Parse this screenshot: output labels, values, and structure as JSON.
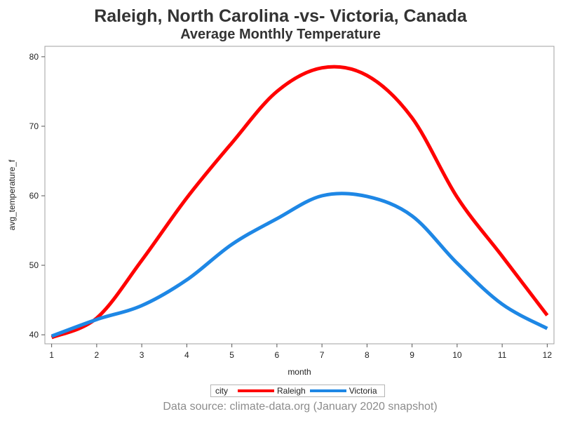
{
  "title": "Raleigh, North Carolina -vs- Victoria, Canada",
  "subtitle": "Average Monthly Temperature",
  "source_note": "Data source: climate-data.org (January 2020 snapshot)",
  "chart_data": {
    "type": "line",
    "xlabel": "month",
    "ylabel": "avg_temperature_f",
    "x": [
      1,
      2,
      3,
      4,
      5,
      6,
      7,
      8,
      9,
      10,
      11,
      12
    ],
    "xlim": [
      0.85,
      12.15
    ],
    "ylim": [
      38.7,
      81.5
    ],
    "x_ticks": [
      1,
      2,
      3,
      4,
      5,
      6,
      7,
      8,
      9,
      10,
      11,
      12
    ],
    "y_ticks": [
      40,
      50,
      60,
      70,
      80
    ],
    "grid": false,
    "legend_title": "city",
    "legend_position": "bottom-center",
    "series": [
      {
        "name": "Raleigh",
        "color": "#ff0000",
        "values": [
          39.6,
          42.4,
          50.7,
          59.7,
          67.6,
          75.0,
          78.4,
          77.3,
          71.2,
          59.8,
          51.3,
          42.8
        ]
      },
      {
        "name": "Victoria",
        "color": "#1e87e5",
        "values": [
          39.8,
          42.2,
          44.2,
          47.9,
          53.0,
          56.7,
          60.0,
          59.9,
          57.1,
          50.3,
          44.4,
          40.9
        ]
      }
    ]
  }
}
